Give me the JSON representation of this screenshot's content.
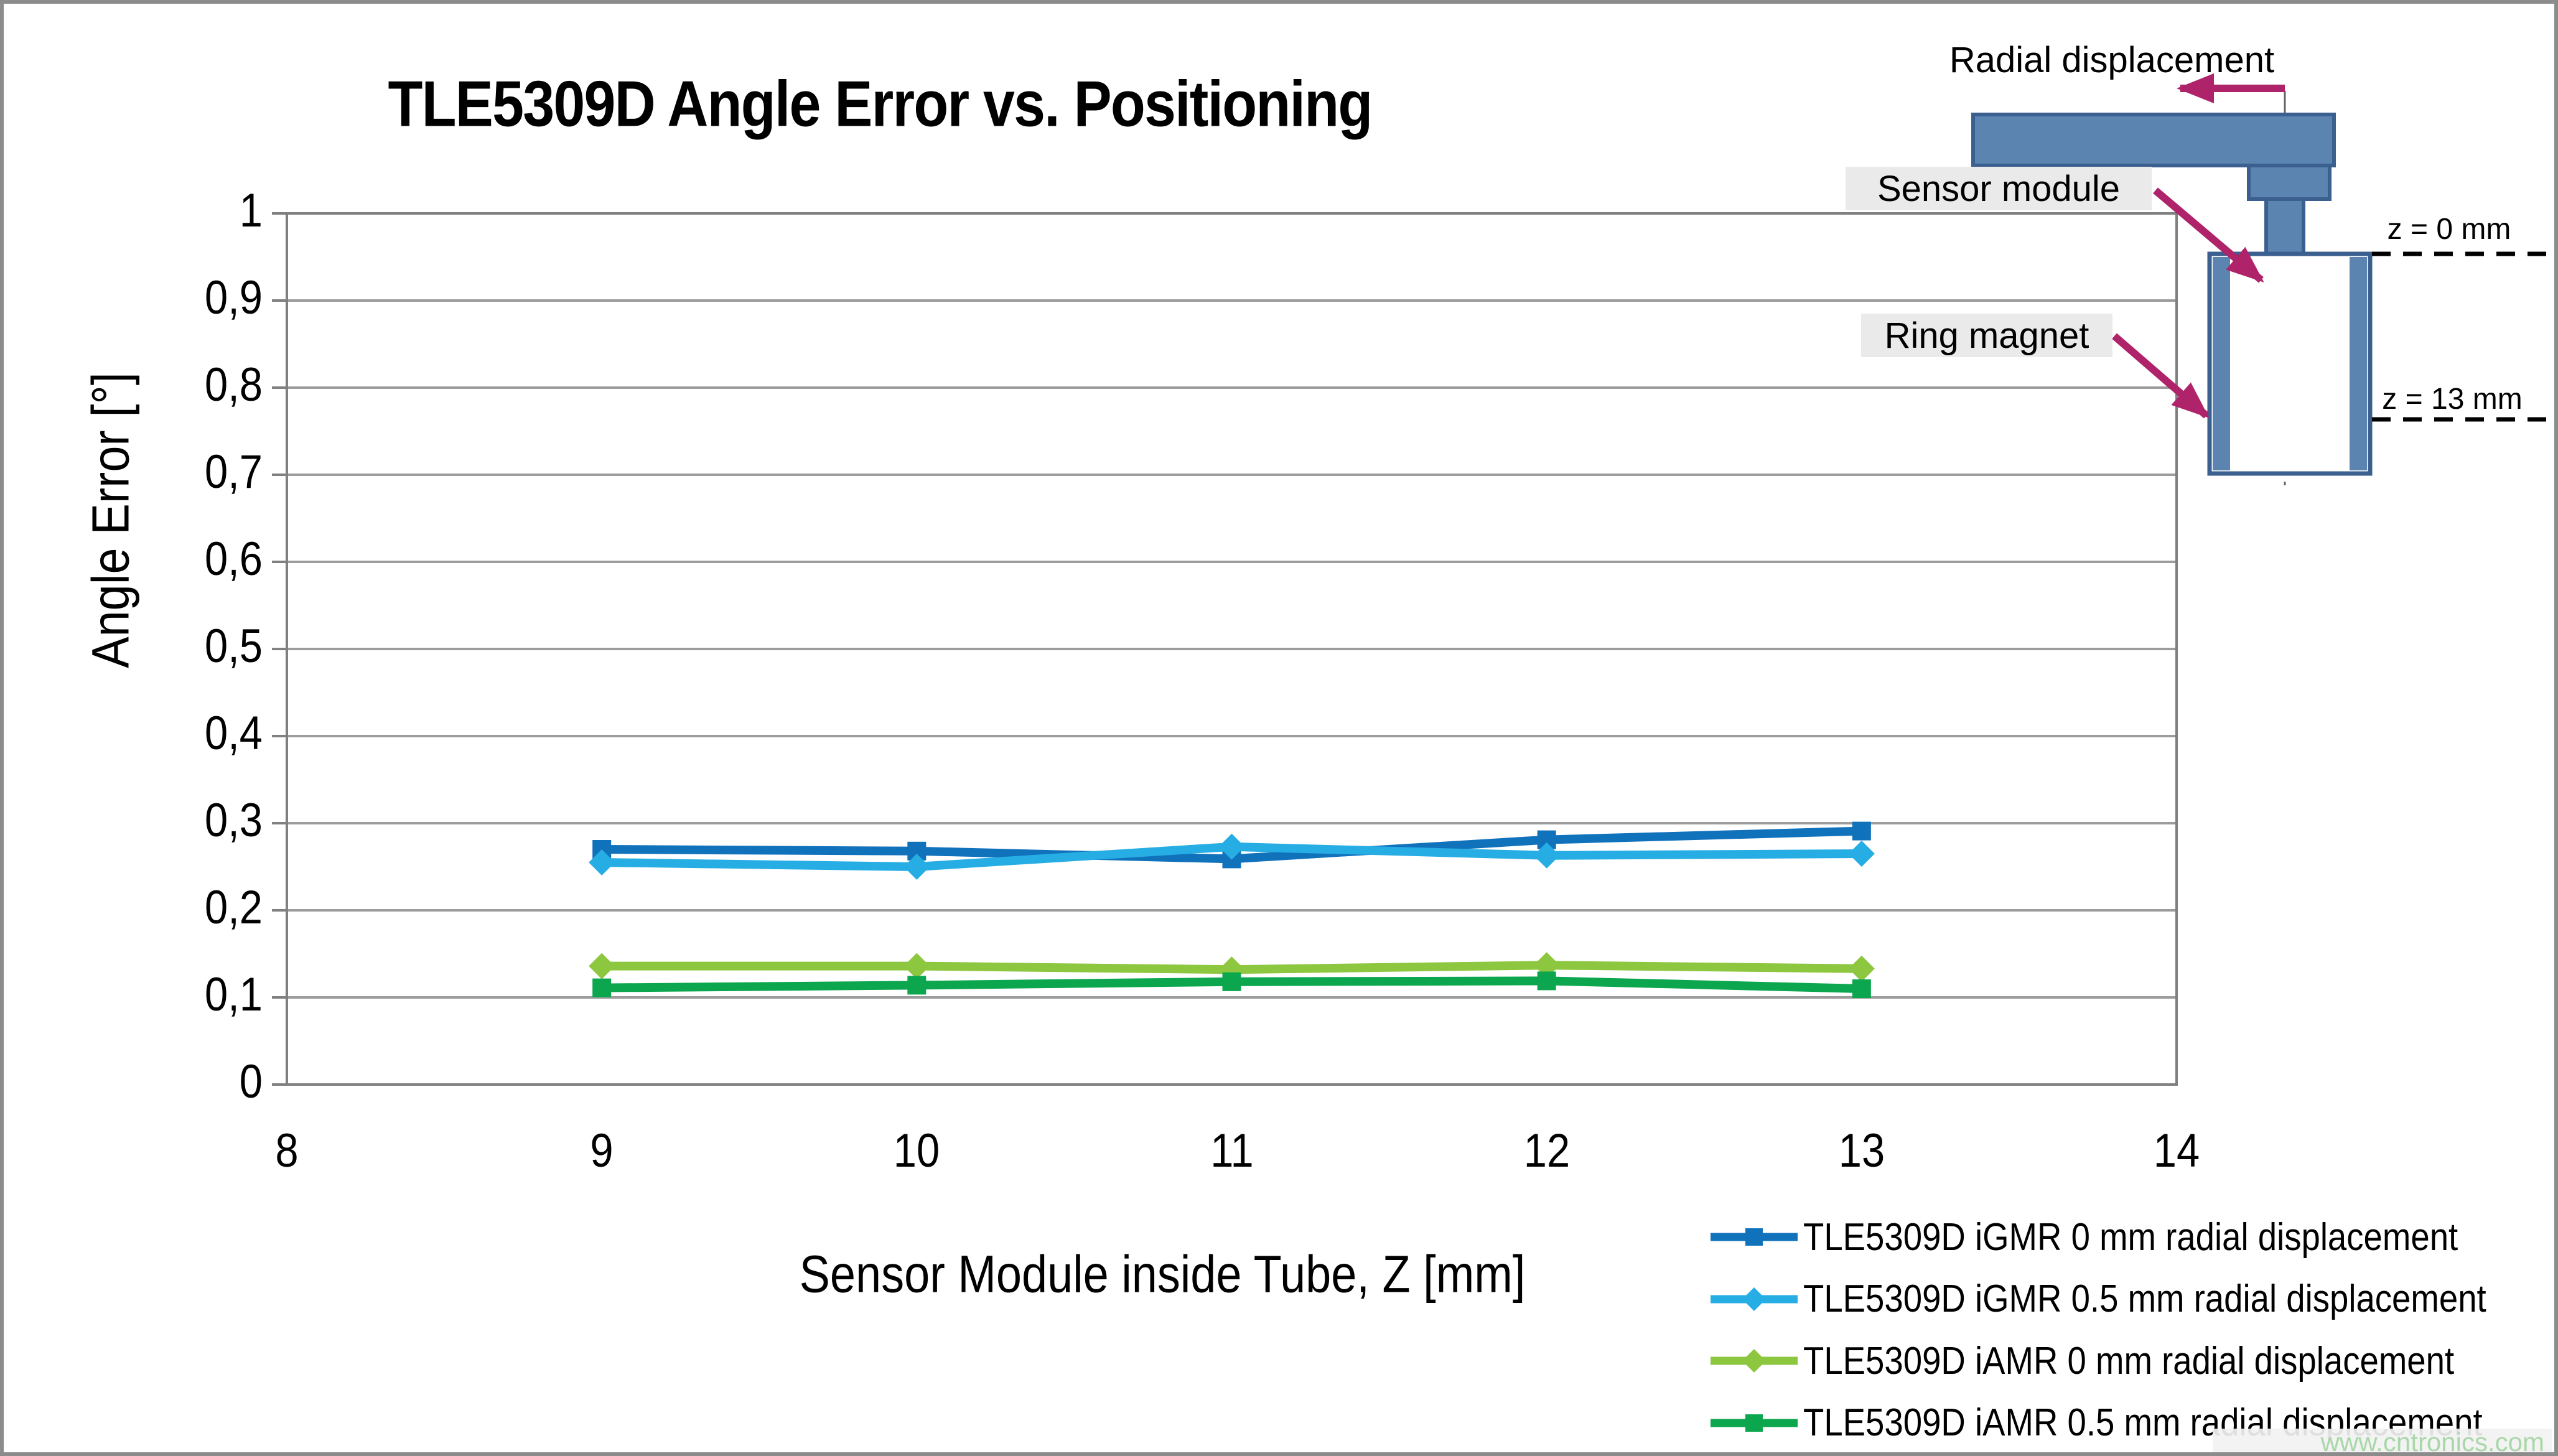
{
  "title": "TLE5309D Angle Error vs. Positioning",
  "watermark": "www.cntronics.com",
  "chart_data": {
    "type": "line",
    "title": "TLE5309D Angle Error vs. Positioning",
    "xlabel": "Sensor Module inside Tube, Z [mm]",
    "ylabel": "Angle Error [°]",
    "xlim": [
      8,
      14
    ],
    "ylim": [
      0,
      1
    ],
    "x_ticks": [
      "8",
      "9",
      "10",
      "11",
      "12",
      "13",
      "14"
    ],
    "y_ticks": [
      "1",
      "0,9",
      "0,8",
      "0,7",
      "0,6",
      "0,5",
      "0,4",
      "0,3",
      "0,2",
      "0,1",
      "0"
    ],
    "grid": true,
    "legend_position": "bottom-right",
    "x": [
      9,
      10,
      11,
      12,
      13
    ],
    "series": [
      {
        "name": "TLE5309D iGMR 0 mm radial displacement",
        "color": "#1172BC",
        "marker": "square",
        "values": [
          0.27,
          0.268,
          0.259,
          0.281,
          0.291
        ]
      },
      {
        "name": "TLE5309D iGMR 0.5 mm radial displacement",
        "color": "#26ADE4",
        "marker": "diamond",
        "values": [
          0.255,
          0.25,
          0.273,
          0.263,
          0.265
        ]
      },
      {
        "name": "TLE5309D iAMR 0 mm radial displacement",
        "color": "#8DC63F",
        "marker": "diamond",
        "values": [
          0.136,
          0.136,
          0.132,
          0.137,
          0.133
        ]
      },
      {
        "name": "TLE5309D iAMR 0.5 mm radial displacement",
        "color": "#0BA64E",
        "marker": "square",
        "values": [
          0.111,
          0.114,
          0.118,
          0.119,
          0.11
        ]
      }
    ]
  },
  "diagram": {
    "radial_label": "Radial displacement",
    "sensor_label": "Sensor module",
    "ring_label": "Ring magnet",
    "z_top_label": "z = 0 mm",
    "z_bottom_label": "z = 13 mm",
    "colors": {
      "shape_fill": "#5B84B1",
      "shape_border": "#3B5F8E",
      "arrow": "#AE2369",
      "label_bg": "#EAEAEA"
    }
  },
  "axis_colors": {
    "gridline": "#9C9C9C",
    "plot_border": "#808080"
  }
}
